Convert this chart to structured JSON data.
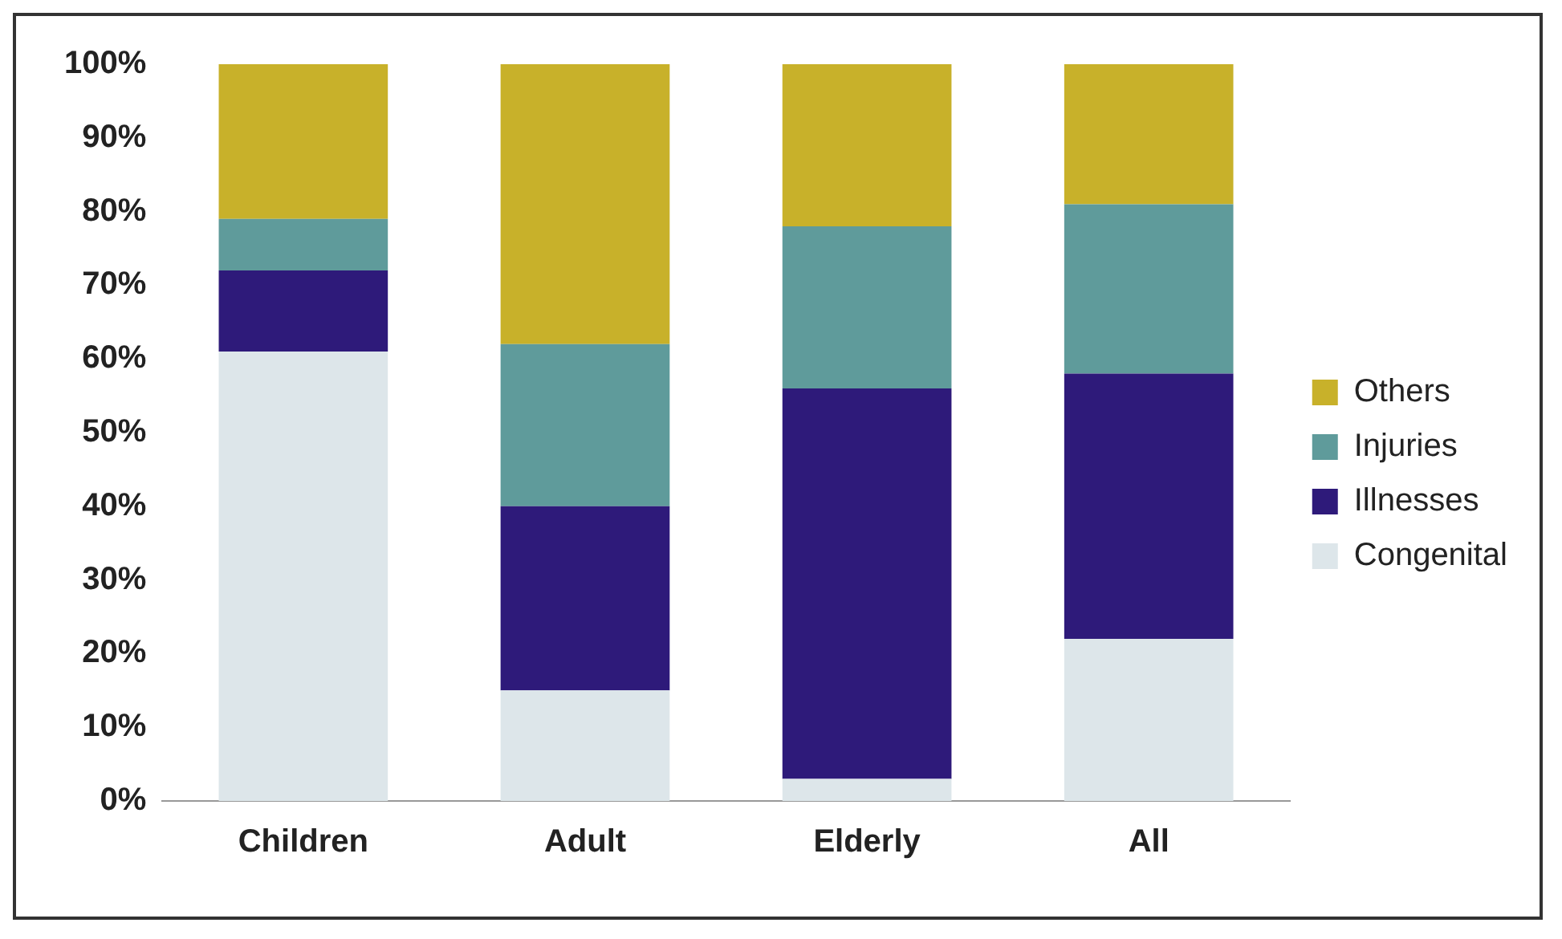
{
  "chart_data": {
    "type": "bar",
    "stacked": true,
    "categories": [
      "Children",
      "Adult",
      "Elderly",
      "All"
    ],
    "series": [
      {
        "name": "Congenital",
        "color": "#dde6ea",
        "values": [
          61,
          15,
          3,
          22
        ]
      },
      {
        "name": "Illnesses",
        "color": "#2e1a7a",
        "values": [
          11,
          25,
          53,
          36
        ]
      },
      {
        "name": "Injuries",
        "color": "#5f9b9b",
        "values": [
          7,
          22,
          22,
          23
        ]
      },
      {
        "name": "Others",
        "color": "#c8b12a",
        "values": [
          21,
          38,
          22,
          19
        ]
      }
    ],
    "ylim": [
      0,
      100
    ],
    "yticks": [
      {
        "value": 0,
        "label": "0%"
      },
      {
        "value": 10,
        "label": "10%"
      },
      {
        "value": 20,
        "label": "20%"
      },
      {
        "value": 30,
        "label": "30%"
      },
      {
        "value": 40,
        "label": "40%"
      },
      {
        "value": 50,
        "label": "50%"
      },
      {
        "value": 60,
        "label": "60%"
      },
      {
        "value": 70,
        "label": "70%"
      },
      {
        "value": 80,
        "label": "80%"
      },
      {
        "value": 90,
        "label": "90%"
      },
      {
        "value": 100,
        "label": "100%"
      }
    ],
    "grid": false,
    "legend": "right"
  }
}
